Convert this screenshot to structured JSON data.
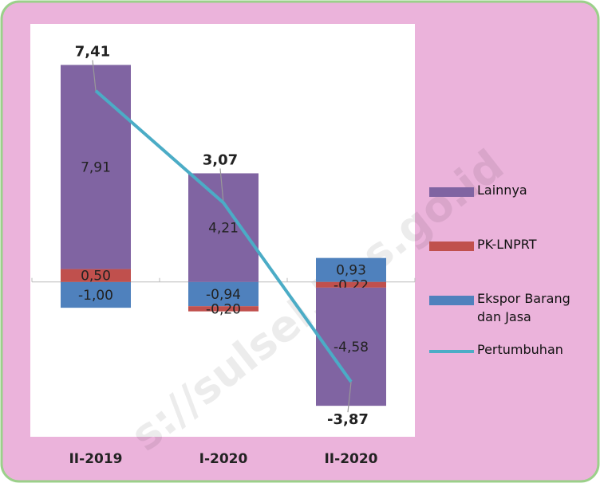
{
  "chart_data": {
    "type": "bar",
    "stacked": true,
    "categories": [
      "II-2019",
      "I-2020",
      "II-2020"
    ],
    "series": [
      {
        "name": "Lainnya",
        "type": "bar",
        "color": "#8064a2",
        "values": [
          7.91,
          4.21,
          -4.58
        ],
        "value_labels": [
          "7,91",
          "4,21",
          "-4,58"
        ]
      },
      {
        "name": "PK-LNPRT",
        "type": "bar",
        "color": "#c0504d",
        "values": [
          0.5,
          -0.2,
          -0.22
        ],
        "value_labels": [
          "0,50",
          "-0,20",
          "-0,22"
        ]
      },
      {
        "name": "Ekspor Barang dan Jasa",
        "type": "bar",
        "color": "#4f81bd",
        "values": [
          -1.0,
          -0.94,
          0.93
        ],
        "value_labels": [
          "-1,00",
          "-0,94",
          "0,93"
        ]
      },
      {
        "name": "Pertumbuhan",
        "type": "line",
        "color": "#4bacc6",
        "values": [
          7.41,
          3.07,
          -3.87
        ],
        "value_labels": [
          "7,41",
          "3,07",
          "-3,87"
        ]
      }
    ],
    "ylim": [
      -6,
      10
    ],
    "watermark": "s://sulsel.bps.go.id"
  }
}
